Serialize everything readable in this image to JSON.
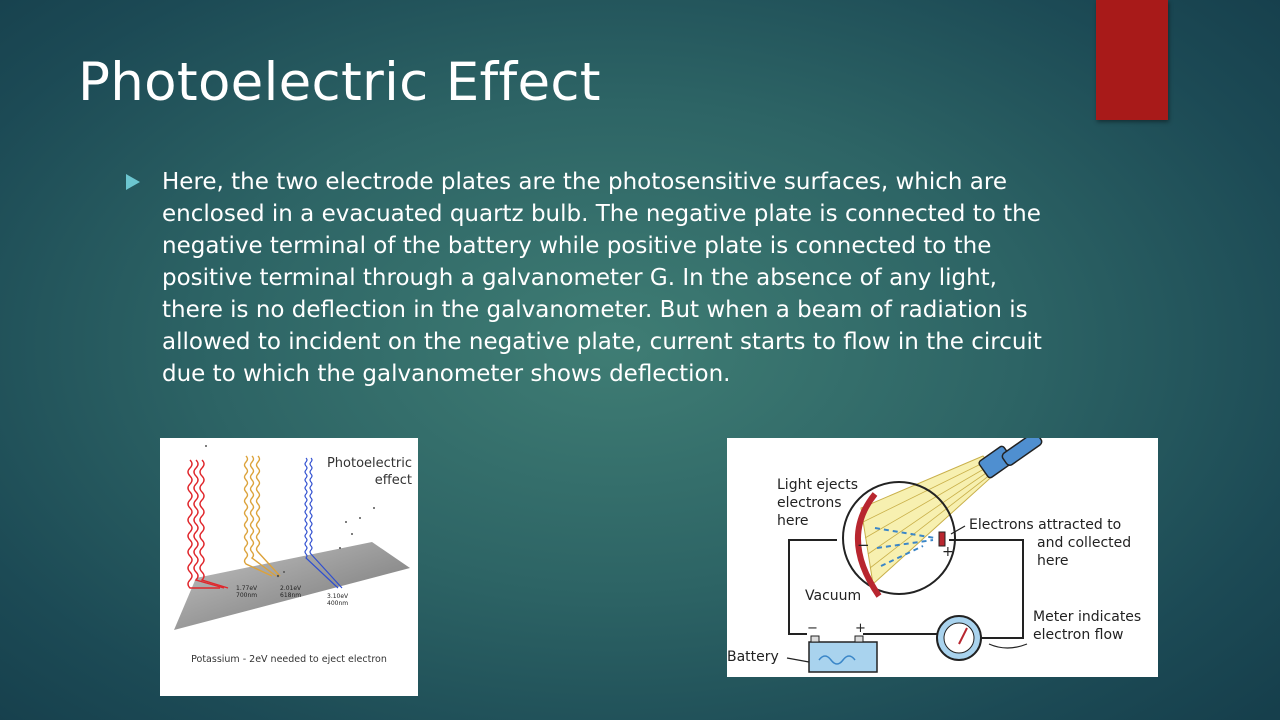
{
  "colors": {
    "accent": "#a81a19",
    "bullet": "#6cc6d0",
    "text": "#ffffff"
  },
  "slide": {
    "title": "Photoelectric Effect",
    "bullet_text": "Here, the two electrode plates are the photosensitive surfaces, which are enclosed in a evacuated quartz bulb. The negative plate is connected to the negative terminal of the battery while positive plate is connected to the positive terminal through a galvanometer G. In the absence of any light, there is no deflection in the galvanometer. But when a beam of radiation is allowed to incident on the negative plate, current starts to flow in the circuit due to which the galvanometer shows deflection."
  },
  "figure_left": {
    "heading_line1": "Photoelectric",
    "heading_line2": "effect",
    "wave_red_energy": "1.77eV",
    "wave_red_wavelength": "700nm",
    "wave_orange_energy": "2.01eV",
    "wave_orange_wavelength": "618nm",
    "wave_blue_energy": "3.10eV",
    "wave_blue_wavelength": "400nm",
    "caption": "Potassium - 2eV needed to eject electron"
  },
  "figure_right": {
    "label_light_1": "Light ejects",
    "label_light_2": "electrons",
    "label_light_3": "here",
    "label_attracted_1": "Electrons attracted to",
    "label_attracted_2": "and collected",
    "label_attracted_3": "here",
    "label_vacuum": "Vacuum",
    "label_meter_1": "Meter indicates",
    "label_meter_2": "electron flow",
    "label_battery": "Battery",
    "sign_minus": "−",
    "sign_plus": "+"
  }
}
